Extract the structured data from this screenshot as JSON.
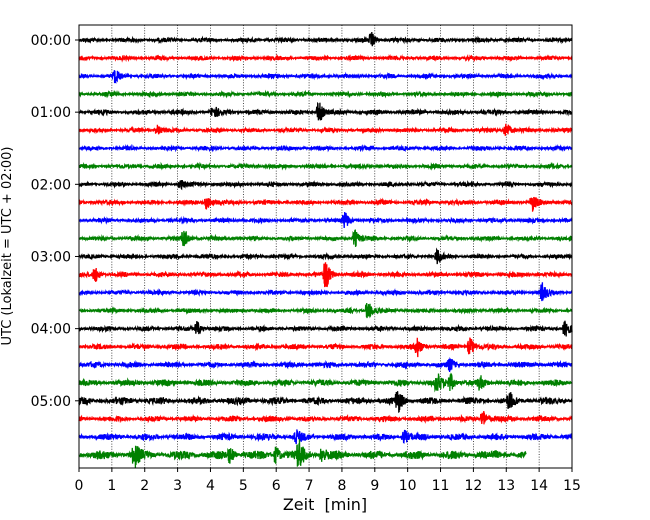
{
  "chart_data": {
    "type": "line",
    "subtype": "seismic helicorder (dayplot)",
    "xlabel": "Zeit  [min]",
    "ylabel": "UTC (Lokalzeit = UTC + 02:00)",
    "xlim": [
      0,
      15
    ],
    "x_ticks": [
      0,
      1,
      2,
      3,
      4,
      5,
      6,
      7,
      8,
      9,
      10,
      11,
      12,
      13,
      14,
      15
    ],
    "x_tick_labels": [
      "0",
      "1",
      "2",
      "3",
      "4",
      "5",
      "6",
      "7",
      "8",
      "9",
      "10",
      "11",
      "12",
      "13",
      "14",
      "15"
    ],
    "y_tick_labels": [
      "00:00",
      "01:00",
      "02:00",
      "03:00",
      "04:00",
      "05:00"
    ],
    "trace_interval_min": 15,
    "grid": "vertical dotted lines at each minute",
    "color_cycle": [
      "#000000",
      "#ff0000",
      "#0000ff",
      "#008000"
    ],
    "traces": [
      {
        "start": "00:00",
        "end_min": 15,
        "amp": 1.0,
        "events": [
          {
            "t": 8.9,
            "a": 2.5
          }
        ]
      },
      {
        "start": "00:15",
        "end_min": 15,
        "amp": 1.0,
        "events": []
      },
      {
        "start": "00:30",
        "end_min": 15,
        "amp": 1.0,
        "events": [
          {
            "t": 1.1,
            "a": 2.0
          }
        ]
      },
      {
        "start": "00:45",
        "end_min": 15,
        "amp": 1.0,
        "events": []
      },
      {
        "start": "01:00",
        "end_min": 15,
        "amp": 1.1,
        "events": [
          {
            "t": 4.1,
            "a": 2.0
          },
          {
            "t": 7.3,
            "a": 4.0
          }
        ]
      },
      {
        "start": "01:15",
        "end_min": 15,
        "amp": 1.0,
        "events": [
          {
            "t": 2.4,
            "a": 1.8
          },
          {
            "t": 13.0,
            "a": 3.0
          }
        ]
      },
      {
        "start": "01:30",
        "end_min": 15,
        "amp": 1.0,
        "events": []
      },
      {
        "start": "01:45",
        "end_min": 15,
        "amp": 1.0,
        "events": []
      },
      {
        "start": "02:00",
        "end_min": 15,
        "amp": 1.0,
        "events": [
          {
            "t": 3.1,
            "a": 1.6
          }
        ]
      },
      {
        "start": "02:15",
        "end_min": 15,
        "amp": 1.1,
        "events": [
          {
            "t": 3.9,
            "a": 3.0
          },
          {
            "t": 13.8,
            "a": 2.5
          }
        ]
      },
      {
        "start": "02:30",
        "end_min": 15,
        "amp": 1.0,
        "events": [
          {
            "t": 8.1,
            "a": 2.8
          }
        ]
      },
      {
        "start": "02:45",
        "end_min": 15,
        "amp": 1.0,
        "events": [
          {
            "t": 3.2,
            "a": 3.5
          },
          {
            "t": 8.4,
            "a": 3.0
          }
        ]
      },
      {
        "start": "03:00",
        "end_min": 15,
        "amp": 1.0,
        "events": [
          {
            "t": 10.9,
            "a": 2.0
          }
        ]
      },
      {
        "start": "03:15",
        "end_min": 15,
        "amp": 1.1,
        "events": [
          {
            "t": 0.5,
            "a": 2.5
          },
          {
            "t": 7.5,
            "a": 5.5
          }
        ]
      },
      {
        "start": "03:30",
        "end_min": 15,
        "amp": 1.0,
        "events": [
          {
            "t": 14.1,
            "a": 3.0
          }
        ]
      },
      {
        "start": "03:45",
        "end_min": 15,
        "amp": 1.0,
        "events": [
          {
            "t": 8.8,
            "a": 3.5
          }
        ]
      },
      {
        "start": "04:00",
        "end_min": 15,
        "amp": 1.1,
        "events": [
          {
            "t": 3.6,
            "a": 2.5
          },
          {
            "t": 14.8,
            "a": 2.5
          }
        ]
      },
      {
        "start": "04:15",
        "end_min": 15,
        "amp": 1.2,
        "events": [
          {
            "t": 10.3,
            "a": 3.0
          },
          {
            "t": 11.9,
            "a": 3.5
          }
        ]
      },
      {
        "start": "04:30",
        "end_min": 15,
        "amp": 1.3,
        "events": [
          {
            "t": 11.3,
            "a": 2.0
          }
        ]
      },
      {
        "start": "04:45",
        "end_min": 15,
        "amp": 1.5,
        "events": [
          {
            "t": 10.9,
            "a": 3.0
          },
          {
            "t": 11.3,
            "a": 3.0
          },
          {
            "t": 12.2,
            "a": 2.0
          }
        ]
      },
      {
        "start": "05:00",
        "end_min": 15,
        "amp": 1.6,
        "events": [
          {
            "t": 9.7,
            "a": 4.0
          },
          {
            "t": 13.1,
            "a": 2.5
          }
        ]
      },
      {
        "start": "05:15",
        "end_min": 15,
        "amp": 1.3,
        "events": [
          {
            "t": 12.3,
            "a": 3.0
          }
        ]
      },
      {
        "start": "05:30",
        "end_min": 15,
        "amp": 1.5,
        "events": [
          {
            "t": 6.6,
            "a": 2.5
          },
          {
            "t": 9.9,
            "a": 2.5
          }
        ]
      },
      {
        "start": "05:45",
        "end_min": 13.6,
        "amp": 2.0,
        "events": [
          {
            "t": 1.7,
            "a": 3.5
          },
          {
            "t": 4.6,
            "a": 2.5
          },
          {
            "t": 6.0,
            "a": 3.0
          },
          {
            "t": 6.7,
            "a": 4.5
          },
          {
            "t": 7.4,
            "a": 2.5
          }
        ]
      }
    ]
  }
}
